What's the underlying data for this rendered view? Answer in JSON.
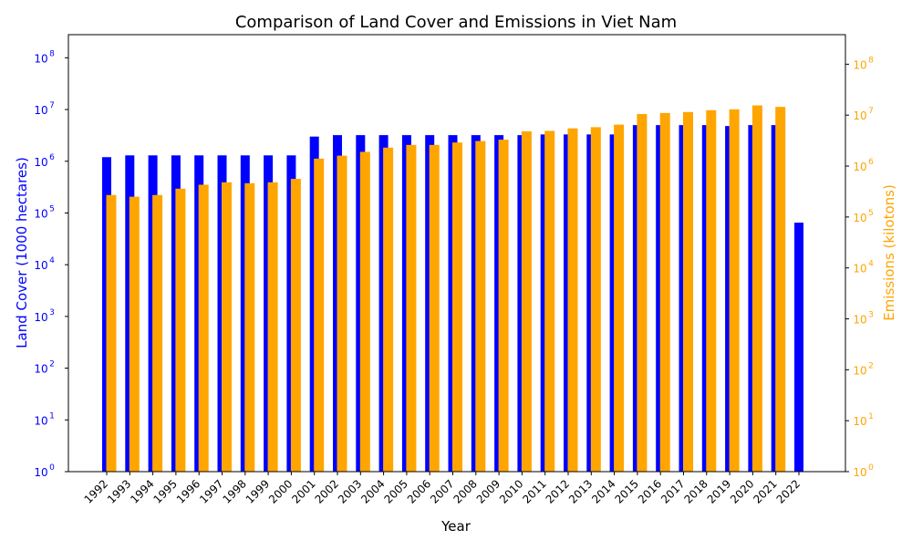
{
  "chart_data": {
    "type": "bar",
    "title": "Comparison of Land Cover and Emissions in Viet Nam",
    "xlabel": "Year",
    "ylabel_left": "Land Cover (1000 hectares)",
    "ylabel_right": "Emissions (kilotons)",
    "yscale": "log",
    "ylim_left": [
      1,
      280000000
    ],
    "ylim_right": [
      1,
      380000000
    ],
    "left_ticks": [
      {
        "value": 1,
        "label": "10",
        "exp": "0"
      },
      {
        "value": 10,
        "label": "10",
        "exp": "1"
      },
      {
        "value": 100,
        "label": "10",
        "exp": "2"
      },
      {
        "value": 1000,
        "label": "10",
        "exp": "3"
      },
      {
        "value": 10000,
        "label": "10",
        "exp": "4"
      },
      {
        "value": 100000,
        "label": "10",
        "exp": "5"
      },
      {
        "value": 1000000,
        "label": "10",
        "exp": "6"
      },
      {
        "value": 10000000,
        "label": "10",
        "exp": "7"
      },
      {
        "value": 100000000,
        "label": "10",
        "exp": "8"
      }
    ],
    "right_ticks": [
      {
        "value": 1,
        "label": "10",
        "exp": "0"
      },
      {
        "value": 10,
        "label": "10",
        "exp": "1"
      },
      {
        "value": 100,
        "label": "10",
        "exp": "2"
      },
      {
        "value": 1000,
        "label": "10",
        "exp": "3"
      },
      {
        "value": 10000,
        "label": "10",
        "exp": "4"
      },
      {
        "value": 100000,
        "label": "10",
        "exp": "5"
      },
      {
        "value": 1000000,
        "label": "10",
        "exp": "6"
      },
      {
        "value": 10000000,
        "label": "10",
        "exp": "7"
      },
      {
        "value": 100000000,
        "label": "10",
        "exp": "8"
      }
    ],
    "categories": [
      "1992",
      "1993",
      "1994",
      "1995",
      "1996",
      "1997",
      "1998",
      "1999",
      "2000",
      "2001",
      "2002",
      "2003",
      "2004",
      "2005",
      "2006",
      "2007",
      "2008",
      "2009",
      "2010",
      "2011",
      "2012",
      "2013",
      "2014",
      "2015",
      "2016",
      "2017",
      "2018",
      "2019",
      "2020",
      "2021",
      "2022"
    ],
    "series": [
      {
        "axis": "left",
        "color": "#0000ff",
        "values": [
          1200000,
          1300000,
          1300000,
          1300000,
          1300000,
          1300000,
          1300000,
          1300000,
          1300000,
          3000000,
          3200000,
          3200000,
          3200000,
          3200000,
          3200000,
          3200000,
          3200000,
          3200000,
          3200000,
          3300000,
          3300000,
          3300000,
          3300000,
          5000000,
          5000000,
          5000000,
          5000000,
          4800000,
          5000000,
          5000000,
          65000
        ]
      },
      {
        "axis": "right",
        "color": "#ffa500",
        "values": [
          270000,
          250000,
          270000,
          360000,
          430000,
          480000,
          460000,
          480000,
          560000,
          1400000,
          1600000,
          1900000,
          2300000,
          2600000,
          2600000,
          2900000,
          3100000,
          3300000,
          4800000,
          4900000,
          5500000,
          5800000,
          6500000,
          10500000,
          11000000,
          11500000,
          12500000,
          13000000,
          15500000,
          14500000,
          null
        ]
      }
    ],
    "grid": false,
    "legend": "none",
    "colors": {
      "left_axis": "#0000ff",
      "right_axis": "#ffa500",
      "text": "#000000"
    }
  }
}
